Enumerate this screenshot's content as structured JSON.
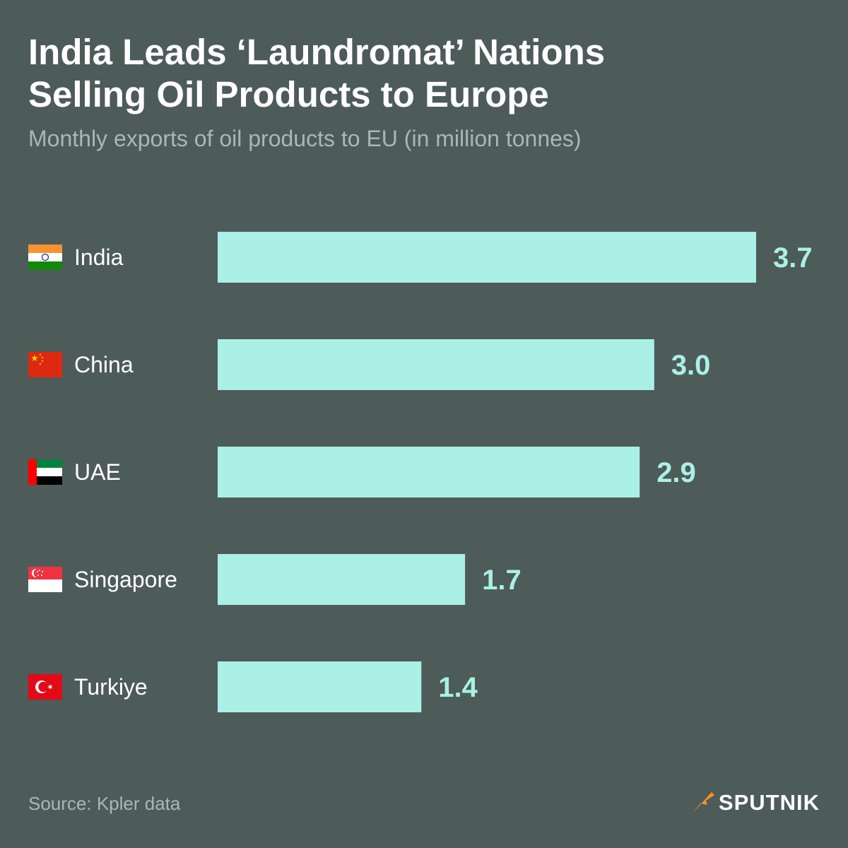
{
  "title_line1": "India Leads ‘Laundromat’ Nations",
  "title_line2": "Selling Oil Products to Europe",
  "subtitle": "Monthly exports of oil products to EU (in million tonnes)",
  "source": "Source: Kpler data",
  "brand": "SPUTNIK",
  "colors": {
    "background": "#4d5b59",
    "bar": "#aaf0e6",
    "value": "#aaf0e6",
    "brand_accent": "#f7931e"
  },
  "chart_data": {
    "type": "bar",
    "orientation": "horizontal",
    "title": "India Leads ‘Laundromat’ Nations Selling Oil Products to Europe",
    "subtitle": "Monthly exports of oil products to EU (in million tonnes)",
    "categories": [
      "India",
      "China",
      "UAE",
      "Singapore",
      "Turkiye"
    ],
    "values": [
      3.7,
      3.0,
      2.9,
      1.7,
      1.4
    ],
    "value_labels": [
      "3.7",
      "3.0",
      "2.9",
      "1.7",
      "1.4"
    ],
    "flags": [
      "india-flag-icon",
      "china-flag-icon",
      "uae-flag-icon",
      "singapore-flag-icon",
      "turkiye-flag-icon"
    ],
    "xlim": [
      0,
      3.7
    ],
    "grid": false,
    "legend": "none"
  }
}
